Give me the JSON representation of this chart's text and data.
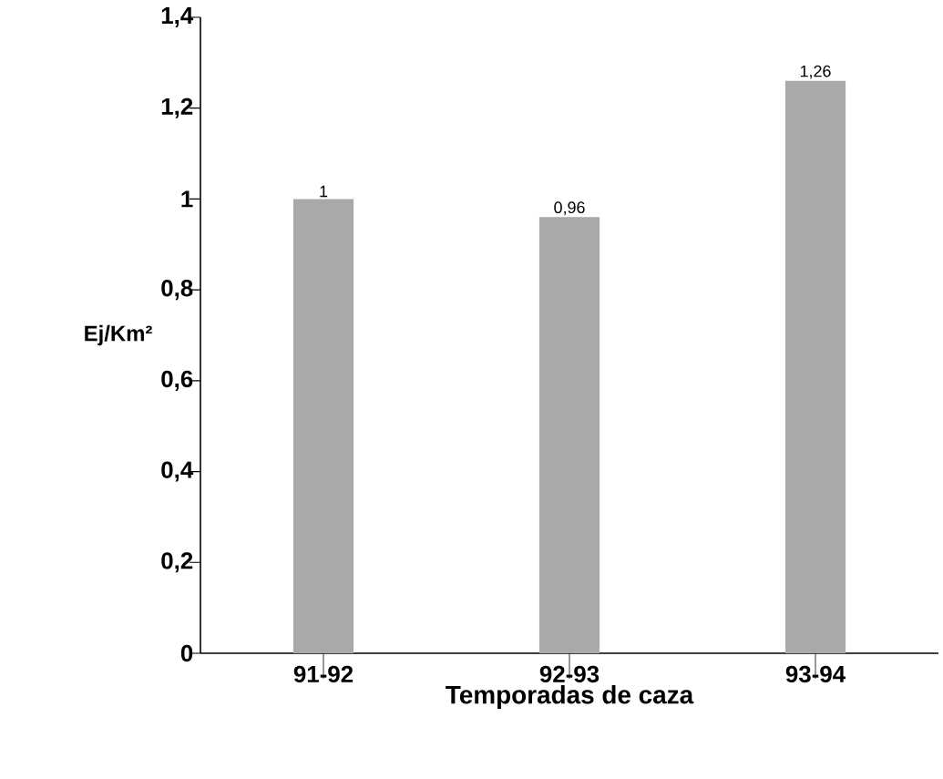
{
  "chart_data": {
    "type": "bar",
    "xlabel": "Temporadas de caza",
    "ylabel": "Ej/Km²",
    "categories": [
      "91-92",
      "92-93",
      "93-94"
    ],
    "values": [
      1,
      0.96,
      1.26
    ],
    "value_labels": [
      "1",
      "0,96",
      "1,26"
    ],
    "color": "#a9a9a9",
    "ylim": [
      0,
      1.4
    ],
    "yticks": [
      0,
      {
        "value": 0.2,
        "label": "0,2"
      },
      {
        "value": 0.4,
        "label": "0,4"
      },
      {
        "value": 0.6,
        "label": "0,6"
      },
      {
        "value": 0.8,
        "label": "0,8"
      },
      1,
      {
        "value": 1.2,
        "label": "1,2"
      },
      {
        "value": 1.4,
        "label": "1,4"
      }
    ],
    "grid": false
  }
}
